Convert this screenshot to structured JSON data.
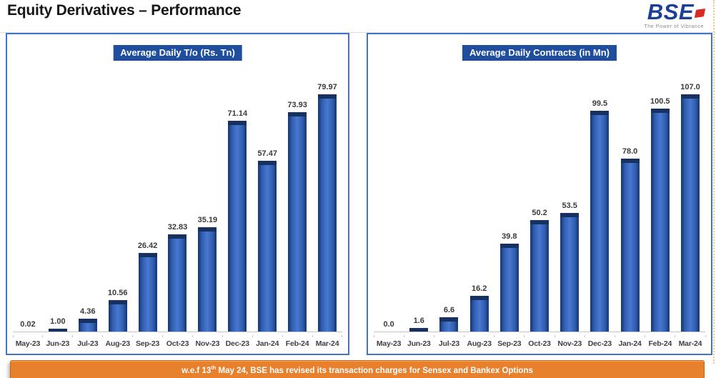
{
  "header": {
    "title": "Equity Derivatives – Performance",
    "logo": {
      "text": "BSE",
      "tagline": "The Power of Vibrance"
    }
  },
  "chart_data": [
    {
      "type": "bar",
      "title": "Average Daily T/o (Rs. Tn)",
      "categories": [
        "May-23",
        "Jun-23",
        "Jul-23",
        "Aug-23",
        "Sep-23",
        "Oct-23",
        "Nov-23",
        "Dec-23",
        "Jan-24",
        "Feb-24",
        "Mar-24"
      ],
      "values": [
        0.02,
        1.0,
        4.36,
        10.56,
        26.42,
        32.83,
        35.19,
        71.14,
        57.47,
        73.93,
        79.97
      ],
      "value_labels": [
        "0.02",
        "1.00",
        "4.36",
        "10.56",
        "26.42",
        "32.83",
        "35.19",
        "71.14",
        "57.47",
        "73.93",
        "79.97"
      ],
      "xlabel": "",
      "ylabel": "",
      "ylim": [
        0,
        85
      ],
      "grid": false,
      "legend": false,
      "data_labels": true,
      "bar_color": "#2F5CAE",
      "bar_cap_color": "#16305F"
    },
    {
      "type": "bar",
      "title": "Average Daily Contracts (in Mn)",
      "categories": [
        "May-23",
        "Jun-23",
        "Jul-23",
        "Aug-23",
        "Sep-23",
        "Oct-23",
        "Nov-23",
        "Dec-23",
        "Jan-24",
        "Feb-24",
        "Mar-24"
      ],
      "values": [
        0.0,
        1.6,
        6.6,
        16.2,
        39.8,
        50.2,
        53.5,
        99.5,
        78.0,
        100.5,
        107.0
      ],
      "value_labels": [
        "0.0",
        "1.6",
        "6.6",
        "16.2",
        "39.8",
        "50.2",
        "53.5",
        "99.5",
        "78.0",
        "100.5",
        "107.0"
      ],
      "xlabel": "",
      "ylabel": "",
      "ylim": [
        0,
        112
      ],
      "grid": false,
      "legend": false,
      "data_labels": true,
      "bar_color": "#2F5CAE",
      "bar_cap_color": "#16305F"
    }
  ],
  "footer": {
    "note_prefix": "w.e.f 13",
    "note_sup": "th",
    "note_rest": " May 24, BSE has revised its transaction charges for Sensex and Bankex Options"
  },
  "colors": {
    "panel_border": "#4472C4",
    "badge_bg": "#1F4E9E",
    "badge_text": "#FFFFFF",
    "bar_fill": "#2F5CAE",
    "bar_cap": "#16305F",
    "banner_bg": "#E8812E",
    "banner_text": "#FFFFFF",
    "logo_blue": "#1C3E94",
    "logo_red": "#D92B21",
    "title_text": "#161616"
  }
}
